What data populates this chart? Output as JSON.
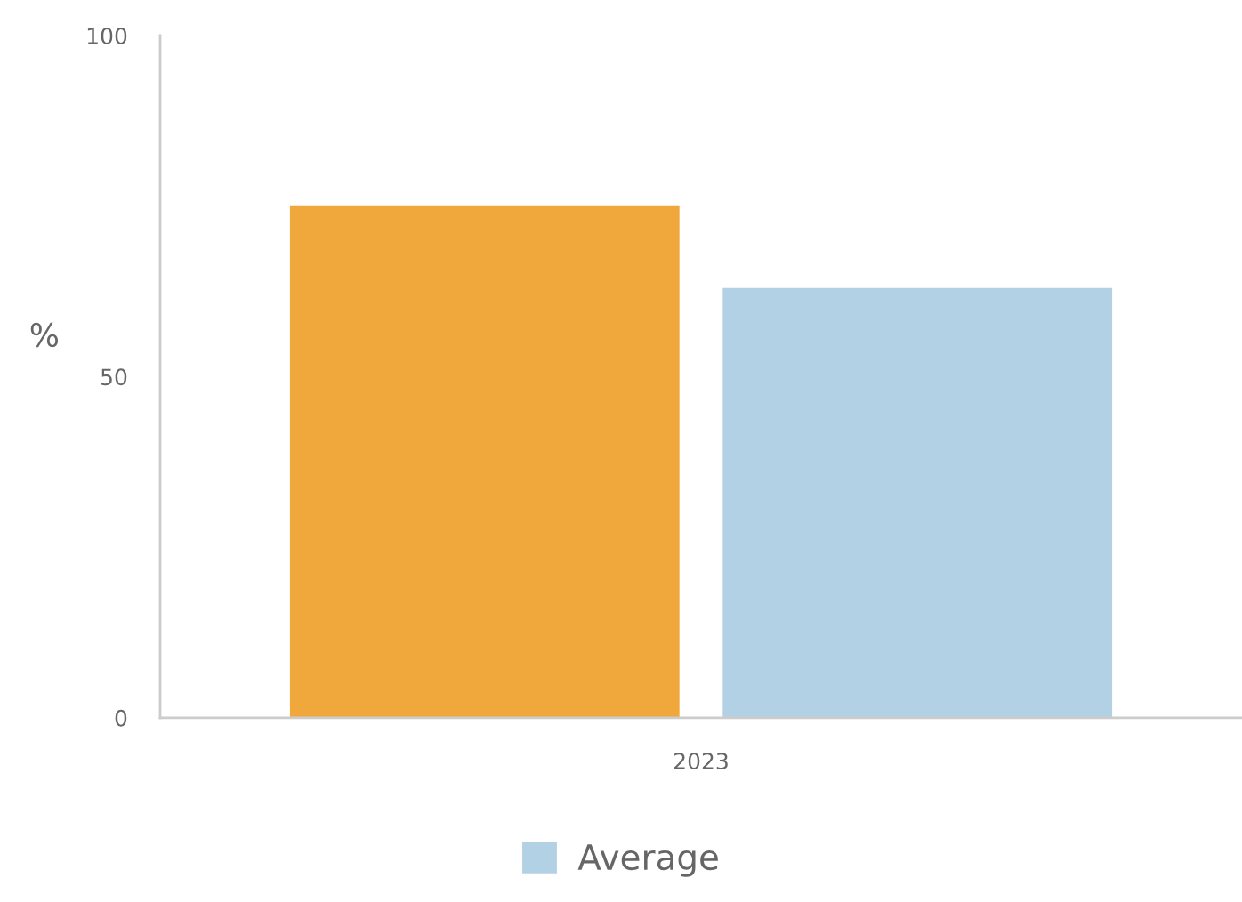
{
  "chart_data": {
    "type": "bar",
    "categories": [
      "2023"
    ],
    "ylabel": "%",
    "ylim": [
      0,
      100
    ],
    "yticks": [
      0,
      50,
      100
    ],
    "legend": "bottom",
    "series": [
      {
        "color": "#f0a73c",
        "values": [
          75
        ]
      },
      {
        "name": "Average",
        "color": "#b3d1e4",
        "values": [
          63
        ]
      }
    ]
  }
}
